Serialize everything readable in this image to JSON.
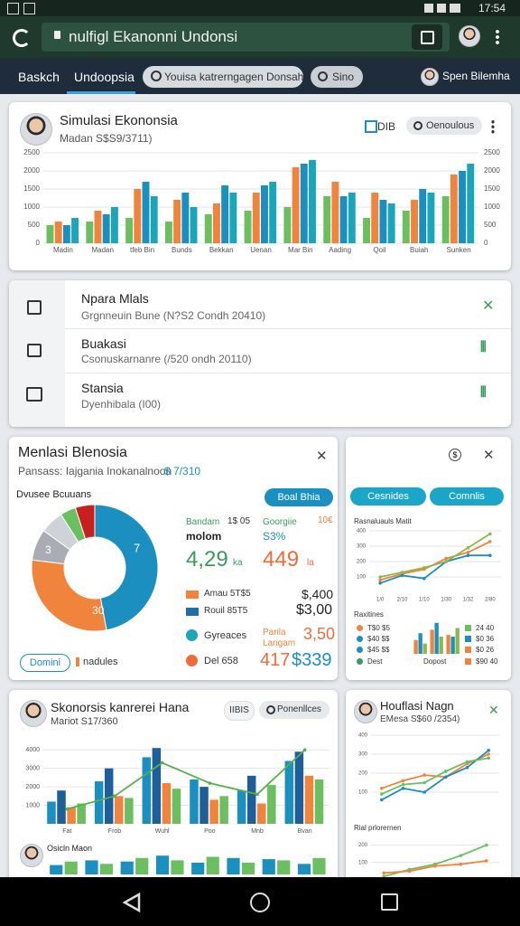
{
  "status_bar": {
    "time": "17:54"
  },
  "browser": {
    "url": "nulfigl Ekanonni Undonsi"
  },
  "tabs": {
    "items": [
      "Baskch",
      "Undoopsia"
    ],
    "search": "Youisa katrerngagen Donsah",
    "button": "Sino",
    "user": "Spen Bilemha"
  },
  "card1": {
    "title": "Simulasi Ekononsia",
    "subtitle": "Madan S$S9/3711)",
    "buttons": [
      "DIB",
      "Oenoulous"
    ],
    "chart": {
      "type": "bar",
      "categories": [
        "Madin",
        "Madan",
        "tfeb Bin",
        "Bunds",
        "Bekkan",
        "Uenan",
        "Mar Bin",
        "Aading",
        "Qoil",
        "Buiah",
        "Sunken"
      ],
      "series": [
        {
          "color": "#6bbf60",
          "values": [
            500,
            600,
            700,
            600,
            800,
            900,
            1000,
            1300,
            700,
            900,
            1300
          ]
        },
        {
          "color": "#f0843c",
          "values": [
            600,
            900,
            1500,
            1200,
            1100,
            1400,
            2100,
            1700,
            1400,
            1200,
            1900
          ]
        },
        {
          "color": "#1b8fc0",
          "values": [
            500,
            800,
            1700,
            1400,
            1600,
            1600,
            2200,
            1300,
            1200,
            1500,
            2000
          ]
        },
        {
          "color": "#1aa6b8",
          "values": [
            700,
            1000,
            1300,
            1000,
            1400,
            1700,
            2300,
            1400,
            1100,
            1400,
            2200
          ]
        }
      ],
      "ylim": [
        0,
        2500
      ],
      "yticks": [
        0,
        500,
        1000,
        1500,
        2000,
        2500
      ],
      "grid": true
    }
  },
  "list": {
    "items": [
      {
        "title": "Npara Mlals",
        "subtitle": "Grgnneuin Bune (N?S2 Condh 20410)"
      },
      {
        "title": "Buakasi",
        "subtitle": "Csonuskarnanre (/520 ondh 20110)"
      },
      {
        "title": "Stansia",
        "subtitle": "Dyenhibala (I00)"
      }
    ]
  },
  "card3": {
    "title": "Menlasi Blenosia",
    "subtitle": "Pansass: Iajgania Inokanalnoon",
    "subtitle_value": "$ 7/310",
    "section": "Dvusee Bcuuans",
    "button": "Boal Bhia",
    "donut": {
      "type": "pie",
      "values": [
        47,
        30,
        8,
        6,
        4,
        5
      ],
      "colors": [
        "#1b8fc0",
        "#f0843c",
        "#a9adb3",
        "#cfd3d8",
        "#6bbf60",
        "#c8201e"
      ],
      "annotations": [
        "7",
        "30",
        "3"
      ]
    },
    "stats": [
      {
        "label": "Bandam",
        "note": "1$ 05",
        "name": "molom",
        "value": "4,29",
        "unit": "ka"
      },
      {
        "label": "Goorgiie",
        "note": "10€",
        "name": "S3%",
        "value": "449",
        "unit": "la"
      }
    ],
    "legend": [
      {
        "name": "Amau 5T$5",
        "value": "$,400"
      },
      {
        "name": "Rouil 85T5",
        "value": "$3,00"
      },
      {
        "name": "Gyreaces",
        "note": "Parila Langam",
        "value": "3,50"
      },
      {
        "name": "Del 658",
        "value": "417",
        "value2": "$339"
      }
    ],
    "footer_button": "Domini",
    "footer_text": "nadules"
  },
  "card4": {
    "buttons": [
      "Cesnides",
      "Comnlis"
    ],
    "chart_title": "Rasnaluauls Matit",
    "chart": {
      "type": "line",
      "categories": [
        "1/0",
        "2/10",
        "1/10",
        "1/30",
        "1/32",
        "2/80"
      ],
      "series": [
        {
          "color": "#f0843c",
          "values": [
            80,
            120,
            150,
            220,
            260,
            330
          ]
        },
        {
          "color": "#1b8fc0",
          "values": [
            60,
            110,
            90,
            200,
            240,
            240
          ]
        },
        {
          "color": "#8bb84a",
          "values": [
            100,
            130,
            160,
            200,
            290,
            380
          ]
        }
      ],
      "ylim": [
        0,
        400
      ],
      "yticks": [
        100,
        200,
        300,
        400
      ],
      "grid": true
    },
    "legend_title": "Raxitines",
    "legend": [
      "T$0 $5",
      "$40 $$",
      "$45 $$",
      "Dest"
    ],
    "bar_chart": {
      "type": "bar",
      "categories": [
        null,
        null,
        null
      ],
      "series": [
        {
          "color": "#f0843c",
          "values": [
            40,
            70,
            55
          ]
        },
        {
          "color": "#1b8fc0",
          "values": [
            60,
            90,
            50
          ]
        },
        {
          "color": "#8bb84a",
          "values": [
            30,
            50,
            75
          ]
        }
      ],
      "ylim": [
        0,
        100
      ]
    },
    "bar_label": "Dopost",
    "values": [
      "24 40",
      "$0 36",
      "$0 26",
      "$90 40"
    ]
  },
  "card5": {
    "title": "Skonorsis kanrerei Hana",
    "subtitle": "Mariot S17/360",
    "buttons": [
      "IIBIS",
      "Ponenllces"
    ],
    "chart": {
      "type": "bar",
      "categories": [
        "Fat",
        "Frob",
        "Wuhl",
        "Poo",
        "Mnb",
        "Bvan"
      ],
      "series": [
        {
          "color": "#1b8fc0",
          "values": [
            1200,
            2300,
            3600,
            2400,
            1800,
            3400
          ]
        },
        {
          "color": "#1f5f99",
          "values": [
            1800,
            3000,
            4100,
            2000,
            2600,
            3900
          ]
        },
        {
          "color": "#f0843c",
          "values": [
            900,
            1500,
            2200,
            1300,
            1100,
            2600
          ]
        },
        {
          "color": "#6bbf60",
          "values": [
            1100,
            1400,
            1900,
            1500,
            2100,
            2400
          ]
        },
        {
          "type": "line",
          "color": "#5aae4a",
          "values": [
            800,
            1500,
            3300,
            2200,
            1600,
            4000
          ]
        }
      ],
      "ylim": [
        0,
        4500
      ],
      "yticks": [
        1000,
        2000,
        3000,
        4000
      ],
      "grid": true
    },
    "section": "Osicln Maon",
    "mini_chart": {
      "type": "bar",
      "categories": [
        null,
        null,
        null,
        null,
        null,
        null,
        null,
        null
      ],
      "series": [
        {
          "color": "#1b8fc0",
          "values": [
            40,
            60,
            55,
            80,
            50,
            70,
            65,
            45
          ]
        },
        {
          "color": "#6bbf60",
          "values": [
            55,
            45,
            70,
            60,
            75,
            50,
            60,
            70
          ]
        }
      ],
      "ylim": [
        0,
        100
      ]
    }
  },
  "card6": {
    "title": "Houflasi Nagn",
    "subtitle": "EMesa S$60 /2354)",
    "chart": {
      "type": "line",
      "categories": [
        null,
        null,
        null,
        null,
        null,
        null
      ],
      "series": [
        {
          "color": "#f0843c",
          "values": [
            120,
            160,
            190,
            180,
            250,
            300
          ]
        },
        {
          "color": "#1b8fc0",
          "values": [
            60,
            120,
            100,
            180,
            230,
            320
          ]
        },
        {
          "color": "#6bbf60",
          "values": [
            90,
            140,
            150,
            210,
            260,
            280
          ]
        }
      ],
      "ylim": [
        0,
        400
      ],
      "yticks": [
        100,
        200,
        300,
        400
      ],
      "grid": true
    },
    "chart2_title": "Rial prlorernen",
    "chart2": {
      "type": "line",
      "categories": [
        null,
        null,
        null,
        null,
        null
      ],
      "series": [
        {
          "color": "#6bbf60",
          "values": [
            20,
            60,
            90,
            140,
            200
          ]
        },
        {
          "color": "#f0843c",
          "values": [
            40,
            50,
            80,
            90,
            110
          ]
        }
      ],
      "ylim": [
        0,
        250
      ],
      "yticks": [
        100,
        200
      ],
      "grid": true
    }
  }
}
